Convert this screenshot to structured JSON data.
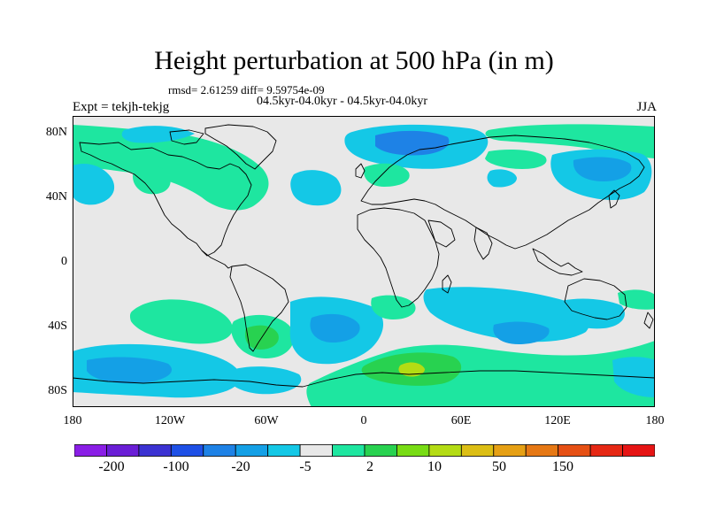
{
  "title": "Height perturbation at 500 hPa (in m)",
  "stats": "rmsd= 2.61259 diff= 9.59754e-09",
  "expt_line": "04.5kyr-04.0kyr - 04.5kyr-04.0kyr",
  "expt_label": "Expt = tekjh-tekjg",
  "season": "JJA",
  "map": {
    "lat_labels": [
      "80N",
      "40N",
      "0",
      "40S",
      "80S"
    ],
    "lon_labels": [
      "180",
      "120W",
      "60W",
      "0",
      "60E",
      "120E",
      "180"
    ]
  },
  "colorbar": {
    "labels": [
      "-200",
      "-100",
      "-20",
      "-5",
      "2",
      "10",
      "50",
      "150"
    ],
    "colors": [
      "#8a1ee6",
      "#6a1ed6",
      "#3c32d2",
      "#1e50e6",
      "#1e82e6",
      "#14a0e6",
      "#14c8e6",
      "#e8e8e8",
      "#1ee6a0",
      "#28d250",
      "#78dc14",
      "#b4dc14",
      "#dcbe14",
      "#e6a014",
      "#e67814",
      "#e65014",
      "#e62814",
      "#e61414"
    ]
  },
  "colors": {
    "land_bg": "#e8e8e8",
    "neg_light": "#14c8e6",
    "neg_mid": "#14a0e6",
    "neg_dark": "#1e82e6",
    "pos_light": "#1ee6a0",
    "pos_mid": "#28d250",
    "pos_high": "#b4dc14"
  }
}
